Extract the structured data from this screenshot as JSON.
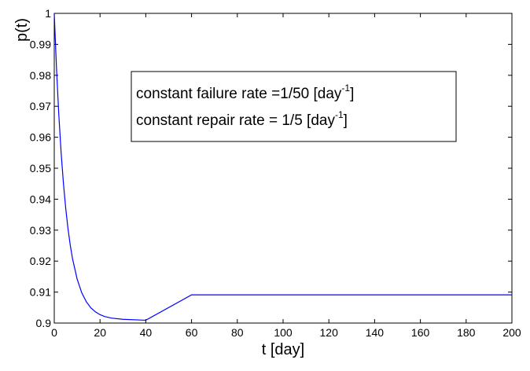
{
  "chart_data": {
    "type": "line",
    "title": "",
    "xlabel": "t [day]",
    "ylabel": "p(t)",
    "xlim": [
      0,
      200
    ],
    "ylim": [
      0.9,
      1.0
    ],
    "x_ticks": [
      "0",
      "20",
      "40",
      "60",
      "80",
      "100",
      "120",
      "140",
      "160",
      "180",
      "200"
    ],
    "y_ticks": [
      "0.9",
      "0.91",
      "0.92",
      "0.93",
      "0.94",
      "0.95",
      "0.96",
      "0.97",
      "0.98",
      "0.99",
      "1"
    ],
    "grid": false,
    "legend": null,
    "annotation": {
      "line1": {
        "text": "constant failure rate =1/50 [day",
        "sup": "-1",
        "end": "]"
      },
      "line2": {
        "text": "constant repair rate = 1/5 [day",
        "sup": "-1",
        "end": "]"
      }
    },
    "series": [
      {
        "color": "#0000ff",
        "x": [
          0,
          1,
          2,
          3,
          4,
          5,
          6,
          7,
          8,
          10,
          12,
          14,
          16,
          18,
          20,
          22,
          25,
          30,
          40,
          60,
          80,
          100,
          120,
          140,
          160,
          180,
          200
        ],
        "y": [
          1.0,
          0.9819,
          0.9671,
          0.955,
          0.9452,
          0.9371,
          0.9305,
          0.9251,
          0.9207,
          0.9142,
          0.9098,
          0.9069,
          0.9049,
          0.9036,
          0.9027,
          0.9021,
          0.9016,
          0.9012,
          0.9009,
          0.9091,
          0.9091,
          0.9091,
          0.9091,
          0.9091,
          0.9091,
          0.9091,
          0.9091
        ]
      }
    ]
  }
}
